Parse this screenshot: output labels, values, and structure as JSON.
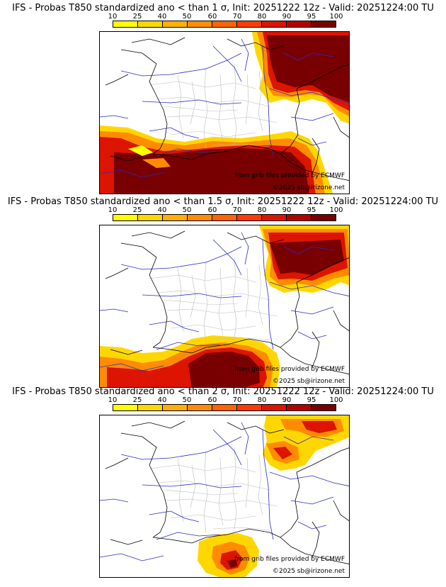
{
  "colorbar": {
    "labels": [
      "10",
      "25",
      "40",
      "50",
      "60",
      "70",
      "80",
      "90",
      "95",
      "100"
    ],
    "colors": [
      "#ffff00",
      "#ffd700",
      "#ffb000",
      "#ff8c00",
      "#ff6400",
      "#ff3c00",
      "#dc1400",
      "#b40000",
      "#780000"
    ]
  },
  "panels": [
    {
      "title": "IFS - Probas T850  standardized ano < than 1 σ, Init: 20251222 12z - Valid: 20251224:00 TU",
      "credit_source": "from grib files provided by ECMWF",
      "credit_copyright": "©2025 sb@irizone.net"
    },
    {
      "title": "IFS - Probas T850  standardized ano < than 1.5 σ, Init: 20251222 12z - Valid: 20251224:00 TU",
      "credit_source": "from grib files provided by ECMWF",
      "credit_copyright": "©2025 sb@irizone.net"
    },
    {
      "title": "IFS - Probas T850  standardized ano < than 2 σ, Init: 20251222 12z - Valid: 20251224:00 TU",
      "credit_source": "from grib files provided by ECMWF",
      "credit_copyright": "©2025 sb@irizone.net"
    }
  ]
}
